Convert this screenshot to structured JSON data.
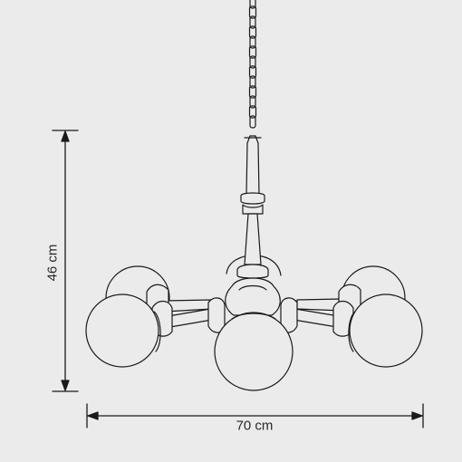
{
  "dimensions": {
    "height_label": "46 cm",
    "width_label": "70 cm"
  },
  "colors": {
    "background": "#ebebeb",
    "line": "#1a1a1a",
    "globe_fill": "#ebebeb"
  }
}
